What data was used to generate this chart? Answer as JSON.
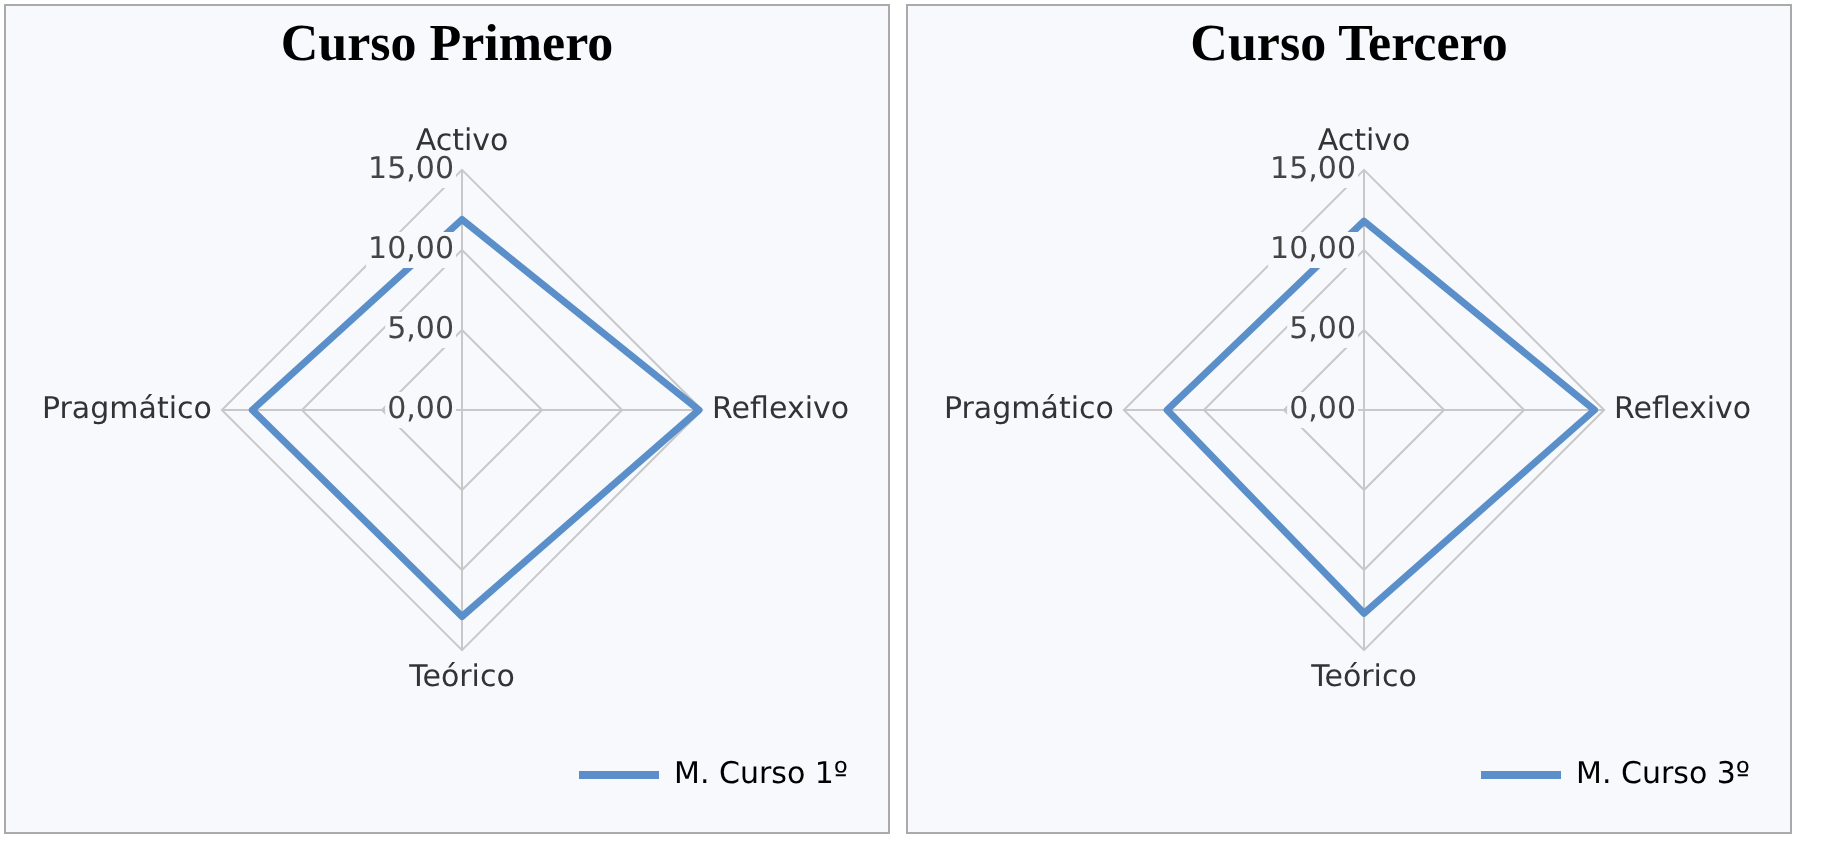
{
  "chart_data": [
    {
      "type": "radar",
      "title": "Curso Primero",
      "categories": [
        "Activo",
        "Reflexivo",
        "Teórico",
        "Pragmático"
      ],
      "series": [
        {
          "name": "M. Curso 1º",
          "color": "#5b8fc9",
          "values": [
            11.9,
            14.8,
            12.9,
            13.1
          ]
        }
      ],
      "ylim": [
        0,
        15
      ],
      "yticks": [
        {
          "value": 0,
          "label": "0,00"
        },
        {
          "value": 5,
          "label": "5,00"
        },
        {
          "value": 10,
          "label": "10,00"
        },
        {
          "value": 15,
          "label": "15,00"
        }
      ],
      "grid": true,
      "legend": "bottom right",
      "marker": "none"
    },
    {
      "type": "radar",
      "title": "Curso Tercero",
      "categories": [
        "Activo",
        "Reflexivo",
        "Teórico",
        "Pragmático"
      ],
      "series": [
        {
          "name": "M. Curso 3º",
          "color": "#5b8fc9",
          "values": [
            11.8,
            14.4,
            12.7,
            12.3
          ]
        }
      ],
      "ylim": [
        0,
        15
      ],
      "yticks": [
        {
          "value": 0,
          "label": "0,00"
        },
        {
          "value": 5,
          "label": "5,00"
        },
        {
          "value": 10,
          "label": "10,00"
        },
        {
          "value": 15,
          "label": "15,00"
        }
      ],
      "grid": true,
      "legend": "bottom right",
      "marker": "none"
    }
  ]
}
